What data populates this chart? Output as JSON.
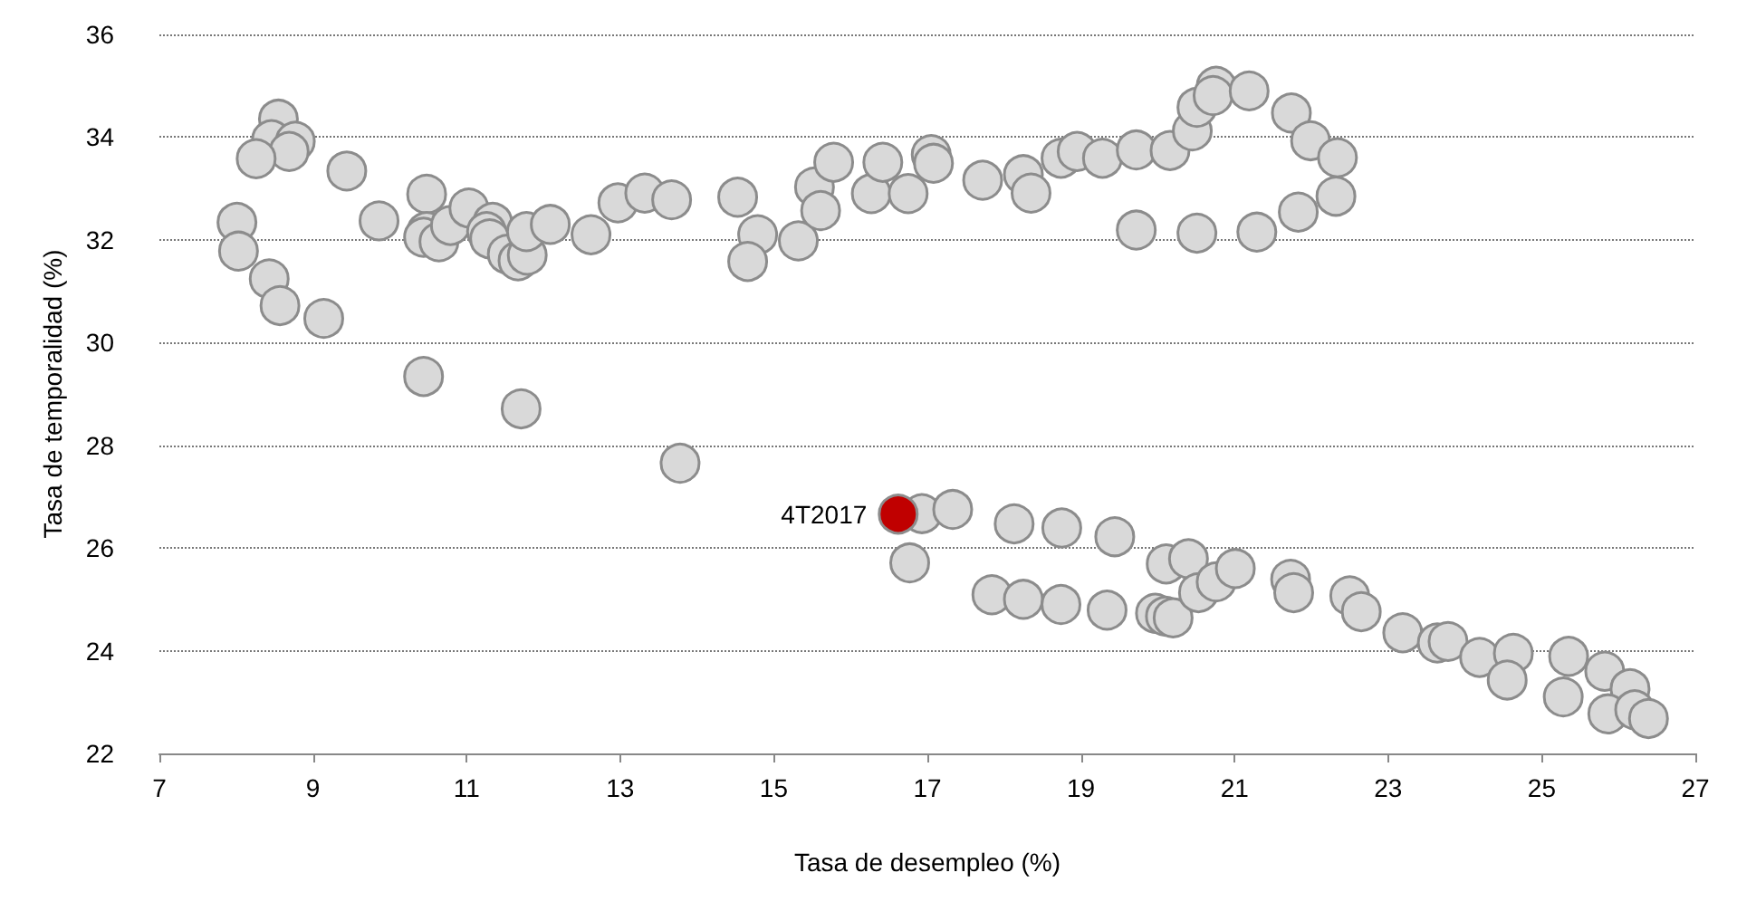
{
  "chart_data": {
    "type": "scatter",
    "xlabel": "Tasa de desempleo (%)",
    "ylabel": "Tasa de temporalidad (%)",
    "xlim": [
      7,
      27
    ],
    "xticks": [
      7,
      9,
      11,
      13,
      15,
      17,
      19,
      21,
      23,
      25,
      27
    ],
    "ylim": [
      22,
      36
    ],
    "yticks": [
      22,
      24,
      26,
      28,
      30,
      32,
      34,
      36
    ],
    "grid": "y",
    "marker": "circle",
    "series": [
      {
        "color": "#d9d9d9",
        "x": [
          8.55,
          8.46,
          8.77,
          8.69,
          8.26,
          9.44,
          8.01,
          8.03,
          8.43,
          8.57,
          9.14,
          9.86,
          10.48,
          10.48,
          10.44,
          10.64,
          10.79,
          11.03,
          11.34,
          11.26,
          11.3,
          11.53,
          11.67,
          11.79,
          11.78,
          12.09,
          12.62,
          12.97,
          13.32,
          13.67,
          10.44,
          11.71,
          13.78,
          14.53,
          14.79,
          14.66,
          15.32,
          15.53,
          15.61,
          15.78,
          16.27,
          16.42,
          16.75,
          17.05,
          17.08,
          17.72,
          18.25,
          18.35,
          18.74,
          18.95,
          19.28,
          19.72,
          20.16,
          19.72,
          20.51,
          20.45,
          20.51,
          20.76,
          20.72,
          21.19,
          21.74,
          21.99,
          22.34,
          22.32,
          21.83,
          21.29,
          16.93,
          17.33,
          16.77,
          18.13,
          18.75,
          19.44,
          17.84,
          18.25,
          18.74,
          19.34,
          19.97,
          20.1,
          20.2,
          20.11,
          20.4,
          20.53,
          20.76,
          21.01,
          21.73,
          21.77,
          22.5,
          22.65,
          23.19,
          23.64,
          23.78,
          24.19,
          24.63,
          24.55,
          25.35,
          25.28,
          25.82,
          26.15,
          25.86,
          26.21,
          26.39
        ],
        "values": [
          34.35,
          33.95,
          33.92,
          33.72,
          33.58,
          33.34,
          32.34,
          31.78,
          31.24,
          30.72,
          30.47,
          32.37,
          32.89,
          32.16,
          32.05,
          31.96,
          32.28,
          32.62,
          32.34,
          32.16,
          32.02,
          31.72,
          31.59,
          31.7,
          32.16,
          32.3,
          32.1,
          32.72,
          32.91,
          32.78,
          29.34,
          28.71,
          27.65,
          32.83,
          32.1,
          31.58,
          31.98,
          33.03,
          32.57,
          33.51,
          32.9,
          33.51,
          32.9,
          33.66,
          33.49,
          33.16,
          33.27,
          32.91,
          33.59,
          33.72,
          33.59,
          33.75,
          33.74,
          32.19,
          32.13,
          34.12,
          34.58,
          34.99,
          34.81,
          34.9,
          34.47,
          33.93,
          33.6,
          32.85,
          32.54,
          32.15,
          26.67,
          26.75,
          25.71,
          26.47,
          26.39,
          26.22,
          25.09,
          25.0,
          24.9,
          24.79,
          24.73,
          24.67,
          24.64,
          25.69,
          25.79,
          25.13,
          25.34,
          25.6,
          25.39,
          25.13,
          25.07,
          24.76,
          24.35,
          24.15,
          24.18,
          23.87,
          23.95,
          23.43,
          23.89,
          23.1,
          23.6,
          23.26,
          22.77,
          22.85,
          22.68
        ]
      },
      {
        "color": "#c00000",
        "x": [
          16.62
        ],
        "values": [
          26.66
        ]
      }
    ],
    "annotations": [
      {
        "text": "4T2017",
        "x": 16.62,
        "y": 26.66
      }
    ]
  }
}
